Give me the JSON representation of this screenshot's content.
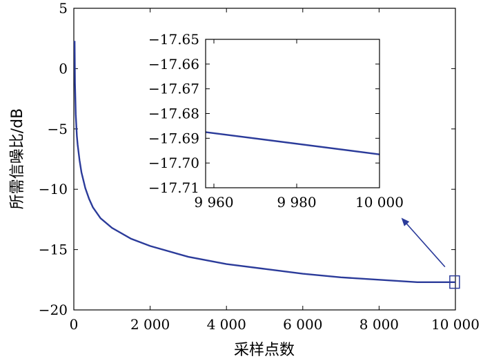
{
  "chart_data": [
    {
      "type": "line",
      "xlabel": "采样点数",
      "ylabel": "所需信噪比/dB",
      "xlim": [
        0,
        10000
      ],
      "ylim": [
        -20,
        5
      ],
      "x_ticks": [
        0,
        2000,
        4000,
        6000,
        8000,
        10000
      ],
      "x_tick_labels": [
        "0",
        "2 000",
        "4 000",
        "6 000",
        "8 000",
        "10 000"
      ],
      "y_ticks": [
        5,
        0,
        -5,
        -10,
        -15,
        -20
      ],
      "y_tick_labels": [
        "5",
        "0",
        "-5",
        "-10",
        "-15",
        "-20"
      ],
      "grid": false,
      "line_color": "#2b3b9a",
      "series": [
        {
          "x": [
            20,
            30,
            50,
            80,
            100,
            150,
            200,
            300,
            400,
            500,
            700,
            1000,
            1500,
            2000,
            3000,
            4000,
            5000,
            6000,
            7000,
            8000,
            9000,
            10000
          ],
          "values": [
            2.3,
            -1.2,
            -3.8,
            -5.6,
            -6.3,
            -7.6,
            -8.6,
            -9.9,
            -10.8,
            -11.5,
            -12.4,
            -13.2,
            -14.1,
            -14.7,
            -15.6,
            -16.2,
            -16.6,
            -17.0,
            -17.3,
            -17.5,
            -17.7,
            -17.7
          ]
        }
      ],
      "highlight": {
        "x": 9980,
        "y": -17.69
      }
    },
    {
      "type": "line",
      "role": "inset-zoom",
      "xlim": [
        9958,
        10000
      ],
      "ylim": [
        -17.71,
        -17.65
      ],
      "x_ticks": [
        9960,
        9980,
        10000
      ],
      "x_tick_labels": [
        "9 960",
        "9 980",
        "10 000"
      ],
      "y_ticks": [
        -17.65,
        -17.66,
        -17.67,
        -17.68,
        -17.69,
        -17.7,
        -17.71
      ],
      "y_tick_labels": [
        "-17.65",
        "-17.66",
        "-17.67",
        "-17.68",
        "-17.69",
        "-17.70",
        "-17.71"
      ],
      "grid": false,
      "line_color": "#2b3b9a",
      "series": [
        {
          "x": [
            9958,
            10000
          ],
          "values": [
            -17.6875,
            -17.6965
          ]
        }
      ]
    }
  ]
}
